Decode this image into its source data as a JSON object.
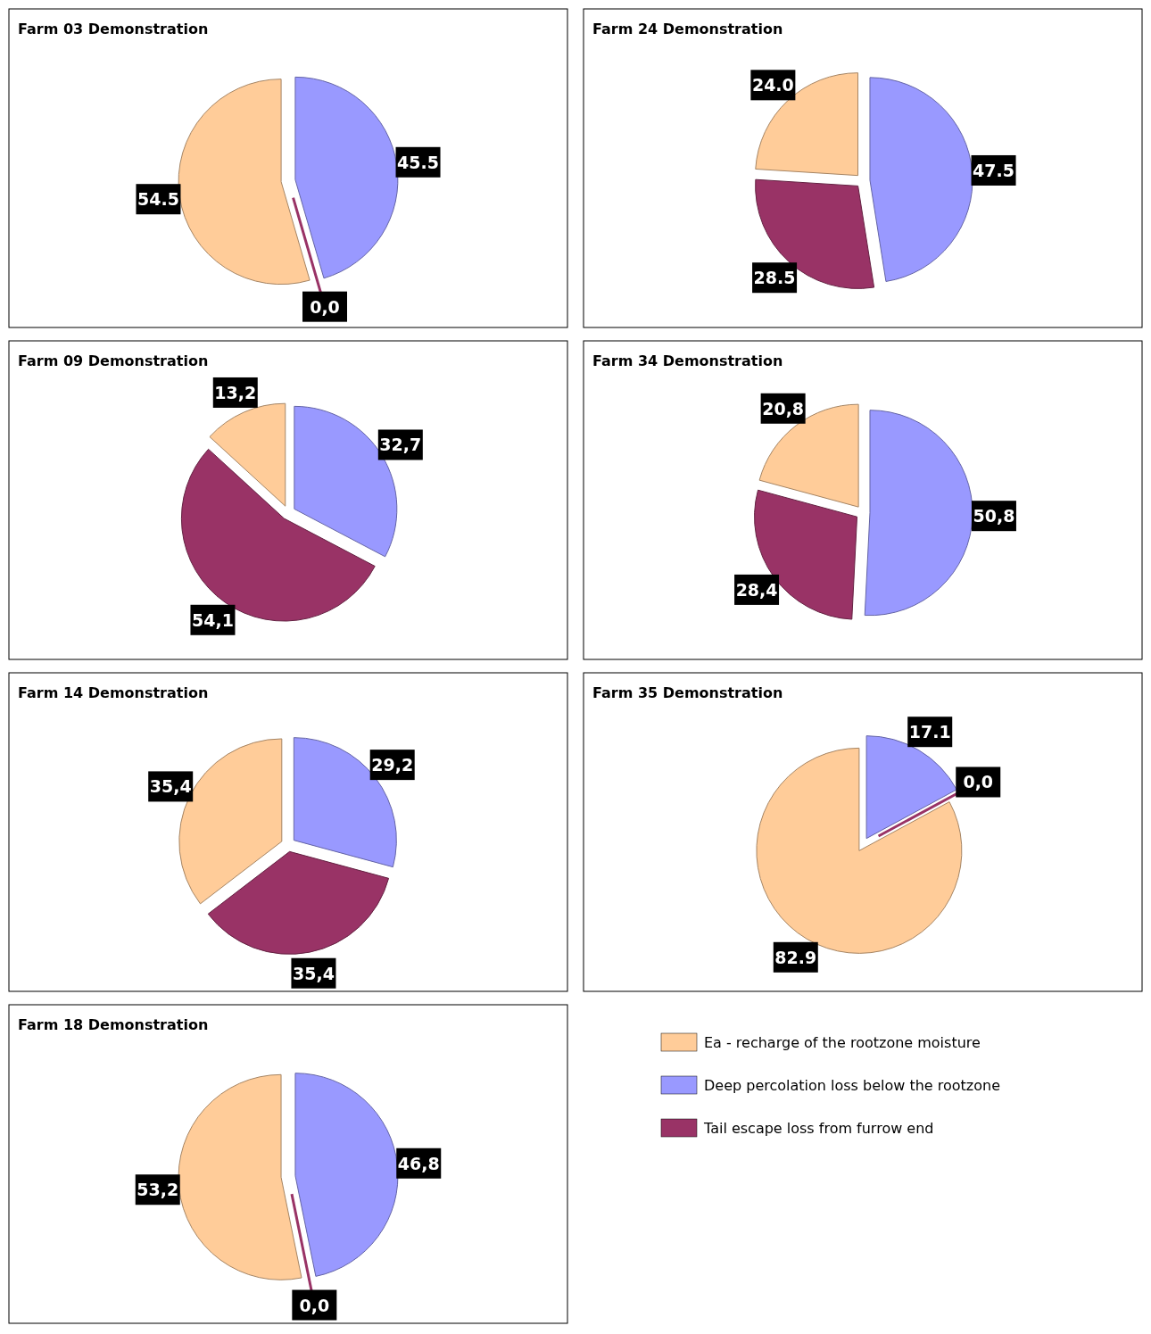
{
  "chart_data": [
    {
      "type": "pie",
      "title": "Farm 03 Demonstration",
      "categories": [
        null,
        null,
        null
      ],
      "values": [
        54.5,
        45.5,
        0.0
      ],
      "value_labels": [
        "54.5",
        "45.5",
        "0,0"
      ],
      "colors": [
        "#ffcc99",
        "#9999ff",
        "#993366"
      ]
    },
    {
      "type": "pie",
      "title": "Farm 24 Demonstration",
      "categories": [
        null,
        null,
        null
      ],
      "values": [
        24.0,
        47.5,
        28.5
      ],
      "value_labels": [
        "24.0",
        "47.5",
        "28.5"
      ],
      "colors": [
        "#ffcc99",
        "#9999ff",
        "#993366"
      ]
    },
    {
      "type": "pie",
      "title": "Farm 09 Demonstration",
      "categories": [
        null,
        null,
        null
      ],
      "values": [
        13.2,
        32.7,
        54.1
      ],
      "value_labels": [
        "13,2",
        "32,7",
        "54,1"
      ],
      "colors": [
        "#ffcc99",
        "#9999ff",
        "#993366"
      ]
    },
    {
      "type": "pie",
      "title": "Farm 34 Demonstration",
      "categories": [
        null,
        null,
        null
      ],
      "values": [
        20.8,
        50.8,
        28.4
      ],
      "value_labels": [
        "20,8",
        "50,8",
        "28,4"
      ],
      "colors": [
        "#ffcc99",
        "#9999ff",
        "#993366"
      ]
    },
    {
      "type": "pie",
      "title": "Farm 14 Demonstration",
      "categories": [
        null,
        null,
        null
      ],
      "values": [
        35.4,
        29.2,
        35.4
      ],
      "value_labels": [
        "35,4",
        "29,2",
        "35,4"
      ],
      "colors": [
        "#ffcc99",
        "#9999ff",
        "#993366"
      ]
    },
    {
      "type": "pie",
      "title": "Farm 35 Demonstration",
      "categories": [
        null,
        null,
        null
      ],
      "values": [
        82.9,
        17.1,
        0.0
      ],
      "value_labels": [
        "82.9",
        "17.1",
        "0,0"
      ],
      "colors": [
        "#ffcc99",
        "#9999ff",
        "#993366"
      ]
    },
    {
      "type": "pie",
      "title": "Farm 18 Demonstration",
      "categories": [
        "Ea - recharge of the rootzone moisture",
        "Deep percolation loss below the rootzone",
        "Tail escape loss from furrow end"
      ],
      "values": [
        53.2,
        46.8,
        0.0
      ],
      "value_labels": [
        "53,2",
        "46,8",
        "0,0"
      ],
      "colors": [
        "#ffcc99",
        "#9999ff",
        "#993366"
      ],
      "legend": "right"
    }
  ]
}
